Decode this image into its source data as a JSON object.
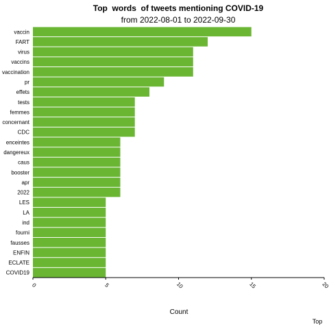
{
  "chart_data": {
    "type": "bar",
    "orientation": "horizontal",
    "title": "Top  words  of tweets mentioning COVID-19",
    "subtitle": "from 2022-08-01 to 2022-09-30",
    "xlabel": "Count",
    "legend_label": "Top",
    "bar_color": "#6ab633",
    "xlim": [
      0,
      20
    ],
    "xticks": [
      "0",
      "5",
      "10",
      "15",
      "20"
    ],
    "categories": [
      "vaccin",
      "FART",
      "virus",
      "vaccins",
      "vaccination",
      "pr",
      "effets",
      "tests",
      "femmes",
      "concernant",
      "CDC",
      "enceintes",
      "dangereux",
      "caus",
      "booster",
      "apr",
      "2022",
      "LES",
      "LA",
      "ind",
      "fourni",
      "fausses",
      "ENFIN",
      "ECLATE",
      "COVID19"
    ],
    "values": [
      15,
      12,
      11,
      11,
      11,
      9,
      8,
      7,
      7,
      7,
      7,
      6,
      6,
      6,
      6,
      6,
      6,
      5,
      5,
      5,
      5,
      5,
      5,
      5,
      5
    ]
  }
}
